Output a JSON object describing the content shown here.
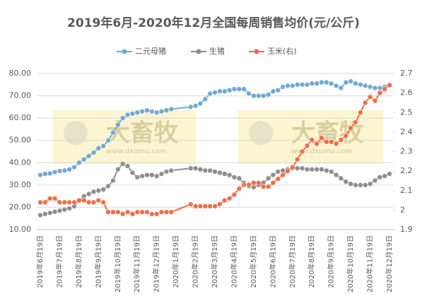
{
  "chart_data": {
    "type": "line",
    "title": "2019年6月-2020年12月全国每周销售均价(元/公斤)",
    "watermark": {
      "text": "大畜牧",
      "url": "www.dxumu.com"
    },
    "categories": [
      "2019年6月19日",
      null,
      null,
      null,
      "2019年7月19日",
      null,
      null,
      null,
      "2019年8月19日",
      null,
      null,
      null,
      "2019年9月19日",
      null,
      null,
      null,
      "2019年10月19日",
      null,
      null,
      null,
      "2019年11月19日",
      null,
      null,
      null,
      "2019年12月19日",
      null,
      null,
      null,
      "2020年1月19日",
      null,
      null,
      null,
      "2020年2月19日",
      null,
      null,
      null,
      "2020年3月19日",
      null,
      null,
      null,
      "2020年4月19日",
      null,
      null,
      null,
      "2020年5月19日",
      null,
      null,
      null,
      "2020年6月19日",
      null,
      null,
      null,
      "2020年7月19日",
      null,
      null,
      null,
      "2020年8月19日",
      null,
      null,
      null,
      "2020年9月19日",
      null,
      null,
      null,
      "2020年10月19日",
      null,
      null,
      null,
      "2020年11月19日",
      null,
      null,
      null,
      "2020年12月19日"
    ],
    "series": [
      {
        "name": "二元母猪",
        "color": "#6fa8d0",
        "values": [
          34.5,
          35,
          35.2,
          35.8,
          36.3,
          36.5,
          37,
          38,
          40,
          41.5,
          43,
          44.5,
          46.5,
          47.5,
          50,
          53.5,
          57,
          60,
          61.5,
          62,
          62.5,
          63,
          63.5,
          63,
          62.5,
          63,
          63.5,
          64,
          null,
          null,
          null,
          65,
          65.5,
          66.5,
          68.5,
          71,
          71.5,
          72,
          72,
          72.5,
          73,
          73,
          73,
          71,
          70,
          70,
          70,
          70.5,
          72,
          72.5,
          74,
          74.5,
          74.5,
          75,
          75,
          75,
          75.5,
          75.5,
          76,
          76,
          75.5,
          74.5,
          73.5,
          76,
          76.5,
          75.5,
          75,
          74.5,
          74,
          73.5,
          73.5,
          74,
          75
        ]
      },
      {
        "name": "生猪",
        "color": "#8c8c8c",
        "values": [
          16.5,
          17,
          17.5,
          18,
          18.5,
          19,
          19.5,
          20.5,
          23,
          25,
          26,
          27,
          27.5,
          28,
          29.5,
          32,
          37,
          39.5,
          38.5,
          35.5,
          33.5,
          34,
          34.5,
          34.5,
          34,
          35,
          36,
          36.5,
          null,
          null,
          null,
          37.5,
          37.5,
          37,
          36.5,
          36.5,
          36,
          35.5,
          35,
          34.5,
          33.5,
          33,
          31,
          29.5,
          29,
          30,
          31,
          33,
          34.5,
          36,
          36.5,
          37,
          37.5,
          37.5,
          37.5,
          37,
          37,
          37,
          37,
          36.5,
          36,
          34.5,
          33,
          31.5,
          30.5,
          30,
          30,
          30,
          30.5,
          32,
          33.5,
          34,
          35
        ]
      },
      {
        "name": "玉米(右)",
        "color": "#ef6c45",
        "axis": "y2",
        "values": [
          2.04,
          2.04,
          2.06,
          2.06,
          2.04,
          2.04,
          2.04,
          2.04,
          2.05,
          2.05,
          2.04,
          2.04,
          2.05,
          2.04,
          1.99,
          1.99,
          1.99,
          1.98,
          1.99,
          1.98,
          1.99,
          1.99,
          1.99,
          1.98,
          1.98,
          1.99,
          1.99,
          1.99,
          null,
          null,
          null,
          2.03,
          2.02,
          2.02,
          2.02,
          2.02,
          2.02,
          2.03,
          2.05,
          2.06,
          2.08,
          2.11,
          2.13,
          2.13,
          2.14,
          2.14,
          2.12,
          2.12,
          2.14,
          2.16,
          2.18,
          2.2,
          2.22,
          2.26,
          2.3,
          2.33,
          2.36,
          2.34,
          2.37,
          2.35,
          2.35,
          2.34,
          2.36,
          2.38,
          2.42,
          2.45,
          2.5,
          2.55,
          2.58,
          2.56,
          2.6,
          2.62,
          2.64
        ]
      }
    ],
    "ylim": [
      10,
      80
    ],
    "yticks": [
      {
        "value": 10,
        "label": "10.00"
      },
      {
        "value": 20,
        "label": "20.00"
      },
      {
        "value": 30,
        "label": "30.00"
      },
      {
        "value": 40,
        "label": "40.00"
      },
      {
        "value": 50,
        "label": "50.00"
      },
      {
        "value": 60,
        "label": "60.00"
      },
      {
        "value": 70,
        "label": "70.00"
      },
      {
        "value": 80,
        "label": "80.00"
      }
    ],
    "y2lim": [
      1.9,
      2.7
    ],
    "y2ticks": [
      1.9,
      2,
      2.1,
      2.2,
      2.3,
      2.4,
      2.5,
      2.6,
      2.7
    ],
    "grid": true,
    "legend": "top",
    "span_gaps": true
  }
}
